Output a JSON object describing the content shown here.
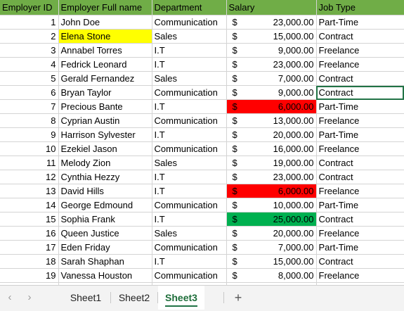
{
  "headers": [
    "Employer ID",
    "Employer Full name",
    "Department",
    "Salary",
    "Job Type"
  ],
  "currency_symbol": "$",
  "rows": [
    {
      "id": "1",
      "name": "John Doe",
      "dept": "Communication",
      "salary": "23,000.00",
      "type": "Part-Time"
    },
    {
      "id": "2",
      "name": "Elena Stone",
      "dept": "Sales",
      "salary": "15,000.00",
      "type": "Contract"
    },
    {
      "id": "3",
      "name": "Annabel Torres",
      "dept": "I.T",
      "salary": "9,000.00",
      "type": "Freelance"
    },
    {
      "id": "4",
      "name": "Fedrick Leonard",
      "dept": "I.T",
      "salary": "23,000.00",
      "type": "Freelance"
    },
    {
      "id": "5",
      "name": "Gerald Fernandez",
      "dept": "Sales",
      "salary": "7,000.00",
      "type": "Contract"
    },
    {
      "id": "6",
      "name": "Bryan Taylor",
      "dept": "Communication",
      "salary": "9,000.00",
      "type": "Contract"
    },
    {
      "id": "7",
      "name": "Precious Bante",
      "dept": "I.T",
      "salary": "6,000.00",
      "type": "Part-Time"
    },
    {
      "id": "8",
      "name": "Cyprian Austin",
      "dept": "Communication",
      "salary": "13,000.00",
      "type": "Freelance"
    },
    {
      "id": "9",
      "name": "Harrison Sylvester",
      "dept": "I.T",
      "salary": "20,000.00",
      "type": "Part-Time"
    },
    {
      "id": "10",
      "name": "Ezekiel  Jason",
      "dept": "Communication",
      "salary": "16,000.00",
      "type": "Freelance"
    },
    {
      "id": "11",
      "name": "Melody Zion",
      "dept": "Sales",
      "salary": "19,000.00",
      "type": "Contract"
    },
    {
      "id": "12",
      "name": "Cynthia Hezzy",
      "dept": "I.T",
      "salary": "23,000.00",
      "type": "Contract"
    },
    {
      "id": "13",
      "name": "David Hills",
      "dept": "I.T",
      "salary": "6,000.00",
      "type": "Freelance"
    },
    {
      "id": "14",
      "name": "George Edmound",
      "dept": "Communication",
      "salary": "10,000.00",
      "type": "Part-Time"
    },
    {
      "id": "15",
      "name": "Sophia Frank",
      "dept": "I.T",
      "salary": "25,000.00",
      "type": "Contract"
    },
    {
      "id": "16",
      "name": "Queen Justice",
      "dept": "Sales",
      "salary": "20,000.00",
      "type": "Freelance"
    },
    {
      "id": "17",
      "name": "Eden Friday",
      "dept": "Communication",
      "salary": "7,000.00",
      "type": "Part-Time"
    },
    {
      "id": "18",
      "name": "Sarah Shaphan",
      "dept": "I.T",
      "salary": "15,000.00",
      "type": "Contract"
    },
    {
      "id": "19",
      "name": "Vanessa Houston",
      "dept": "Communication",
      "salary": "8,000.00",
      "type": "Freelance"
    }
  ],
  "highlight_colors": {
    "header": "#70ad47",
    "yellow": "#ffff00",
    "red": "#ff0000",
    "green": "#00b050",
    "selection": "#217346"
  },
  "tabs": [
    "Sheet1",
    "Sheet2",
    "Sheet3"
  ],
  "active_tab": "Sheet3",
  "icons": {
    "nav_prev": "chevron-left-icon",
    "nav_next": "chevron-right-icon",
    "add_sheet": "plus-icon"
  }
}
